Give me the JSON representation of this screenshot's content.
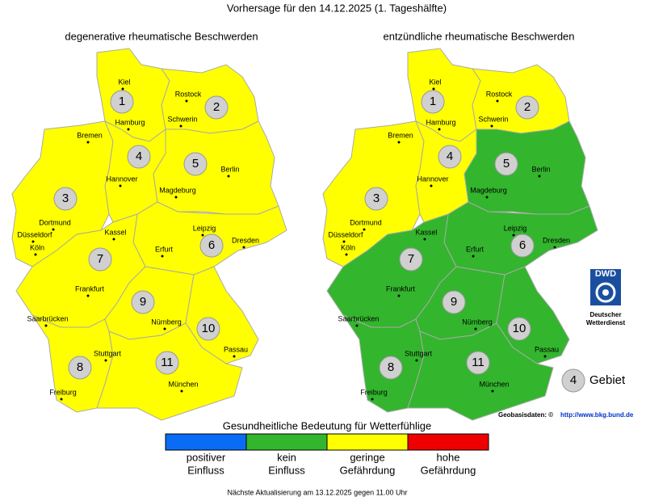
{
  "title": "Vorhersage für den 14.12.2025 (1. Tageshälfte)",
  "maps": [
    {
      "title": "degenerative rheumatische Beschwerden",
      "regions": [
        {
          "number": 1,
          "status": 2
        },
        {
          "number": 2,
          "status": 2
        },
        {
          "number": 3,
          "status": 2
        },
        {
          "number": 4,
          "status": 2
        },
        {
          "number": 5,
          "status": 2
        },
        {
          "number": 6,
          "status": 2
        },
        {
          "number": 7,
          "status": 2
        },
        {
          "number": 8,
          "status": 2
        },
        {
          "number": 9,
          "status": 2
        },
        {
          "number": 10,
          "status": 2
        },
        {
          "number": 11,
          "status": 2
        }
      ]
    },
    {
      "title": "entzündliche rheumatische Beschwerden",
      "regions": [
        {
          "number": 1,
          "status": 2
        },
        {
          "number": 2,
          "status": 2
        },
        {
          "number": 3,
          "status": 2
        },
        {
          "number": 4,
          "status": 2
        },
        {
          "number": 5,
          "status": 1
        },
        {
          "number": 6,
          "status": 1
        },
        {
          "number": 7,
          "status": 1
        },
        {
          "number": 8,
          "status": 1
        },
        {
          "number": 9,
          "status": 1
        },
        {
          "number": 10,
          "status": 1
        },
        {
          "number": 11,
          "status": 1
        }
      ]
    }
  ],
  "cities": [
    "Kiel",
    "Rostock",
    "Hamburg",
    "Schwerin",
    "Bremen",
    "Hannover",
    "Berlin",
    "Magdeburg",
    "Dortmund",
    "Düsseldorf",
    "Köln",
    "Kassel",
    "Leipzig",
    "Dresden",
    "Erfurt",
    "Frankfurt",
    "Nürnberg",
    "Saarbrücken",
    "Stuttgart",
    "Passau",
    "München",
    "Freiburg"
  ],
  "legend": {
    "title": "Gesundheitliche Bedeutung für Wetterfühlige",
    "items": [
      {
        "label": [
          "positiver",
          "Einfluss"
        ],
        "color": "#0a6cf5"
      },
      {
        "label": [
          "kein",
          "Einfluss"
        ],
        "color": "#33b52e"
      },
      {
        "label": [
          "geringe",
          "Gefährdung"
        ],
        "color": "#ffff00"
      },
      {
        "label": [
          "hohe",
          "Gefährdung"
        ],
        "color": "#ee0000"
      }
    ]
  },
  "key": {
    "number": 4,
    "label": "Gebiet"
  },
  "logo": {
    "mark": "DWD",
    "name": [
      "Deutscher",
      "Wetterdienst"
    ]
  },
  "attribution": {
    "label": "Geobasisdaten: ©",
    "link": "http://www.bkg.bund.de"
  },
  "footer": "Nächste Aktualisierung am 13.12.2025 gegen 11.00 Uhr"
}
